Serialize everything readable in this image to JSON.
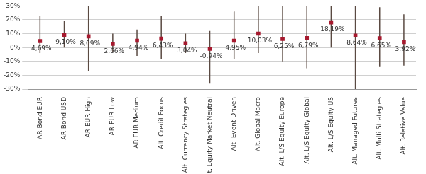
{
  "chart_data": {
    "type": "line",
    "marker": "square",
    "line_style": "none",
    "categories": [
      "AR Bond EUR",
      "AR Bond USD",
      "AR EUR High",
      "AR EUR Low",
      "AR EUR Medium",
      "Alt. Credit Focus",
      "Alt. Currency Strategies",
      "Alt. Equity Market Neutral",
      "Alt. Event Driven",
      "Alt. Global Macro",
      "Alt. L/S Equity Europe",
      "Alt. L/S Equity Global",
      "Alt. L/S Equity US",
      "Alt. Managed Futures",
      "Alt. Multi Strategies",
      "Alt. Relative Value"
    ],
    "values": [
      4.69,
      9.1,
      8.09,
      2.66,
      4.94,
      6.43,
      3.04,
      -0.94,
      4.95,
      10.03,
      6.25,
      6.79,
      18.19,
      8.64,
      6.65,
      3.92
    ],
    "value_labels": [
      "4,69%",
      "9,10%",
      "8,09%",
      "2,66%",
      "4,94%",
      "6,43%",
      "3,04%",
      "-0,94%",
      "4,95%",
      "10,03%",
      "6,25%",
      "6,79%",
      "18,19%",
      "8,64%",
      "6,65%",
      "3,92%"
    ],
    "range_low": [
      -4,
      0,
      -17,
      -3,
      -6,
      -8,
      -4,
      -26,
      -8,
      -4,
      -10,
      -15,
      0,
      -30,
      -14,
      -13
    ],
    "range_high": [
      23,
      19,
      30,
      10,
      13,
      23,
      10,
      12,
      26,
      30,
      30,
      30,
      30,
      30,
      29,
      24
    ],
    "color": "#a6192e",
    "ylim": [
      -30,
      30
    ],
    "yticks": [
      {
        "value": -30,
        "label": "-30%"
      },
      {
        "value": -20,
        "label": "-20%"
      },
      {
        "value": -10,
        "label": "-10%"
      },
      {
        "value": 0,
        "label": "0%"
      },
      {
        "value": 10,
        "label": "10%"
      },
      {
        "value": 20,
        "label": "20%"
      },
      {
        "value": 30,
        "label": "30%"
      }
    ],
    "grid": true,
    "data_labels": true
  }
}
